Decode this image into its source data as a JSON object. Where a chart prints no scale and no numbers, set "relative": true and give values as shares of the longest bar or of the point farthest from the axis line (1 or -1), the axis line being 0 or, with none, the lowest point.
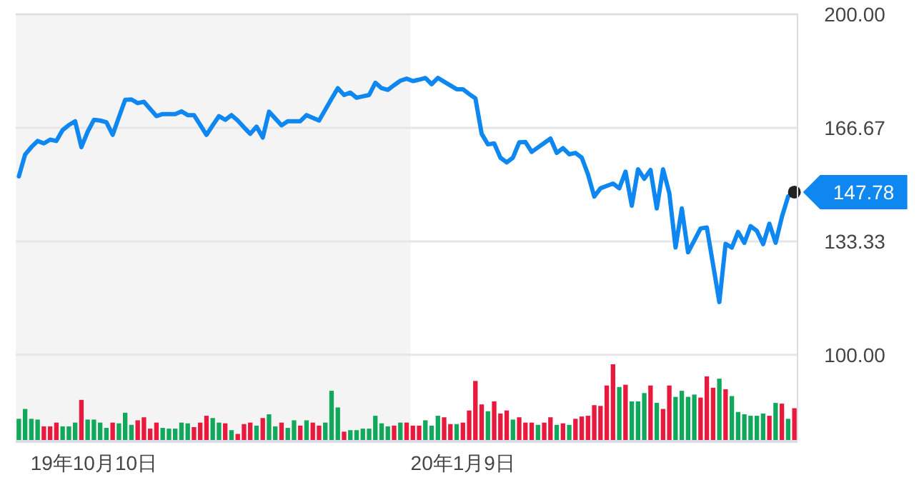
{
  "chart_data": [
    {
      "type": "line",
      "color": "#0f87f0",
      "ylim": [
        75,
        200
      ],
      "grid": "y",
      "yticks": [
        {
          "value": 200,
          "label": "200.00"
        },
        {
          "value": 166.67,
          "label": "166.67"
        },
        {
          "value": 133.33,
          "label": "133.33"
        },
        {
          "value": 100,
          "label": "100.00"
        }
      ],
      "annotations": [
        "147.78"
      ],
      "categories": [
        null,
        null,
        null,
        null,
        null,
        null,
        null,
        null,
        null,
        null,
        null,
        null,
        "19年10月10日",
        null,
        null,
        null,
        null,
        null,
        null,
        null,
        null,
        null,
        null,
        null,
        null,
        null,
        null,
        null,
        null,
        null,
        null,
        null,
        null,
        null,
        null,
        null,
        null,
        null,
        null,
        null,
        null,
        null,
        null,
        null,
        null,
        null,
        null,
        null,
        null,
        null,
        null,
        null,
        null,
        null,
        null,
        null,
        null,
        null,
        null,
        null,
        null,
        null,
        null,
        null,
        null,
        null,
        null,
        null,
        null,
        null,
        null,
        "20年1月9日",
        null,
        null,
        null,
        null,
        null,
        null,
        null,
        null,
        null,
        null,
        null,
        null,
        null,
        null,
        null,
        null,
        null,
        null,
        null,
        null,
        null,
        null,
        null,
        null,
        null,
        null,
        null,
        null,
        null,
        null,
        null,
        null,
        null,
        null,
        null,
        null,
        null,
        null,
        null,
        null,
        null,
        null,
        null,
        null,
        null,
        null,
        null,
        null,
        null,
        null,
        null,
        null,
        null
      ],
      "values": [
        152.4,
        158.8,
        161.0,
        162.8,
        162.1,
        163.2,
        162.8,
        166.0,
        167.5,
        168.6,
        161.0,
        165.5,
        169.0,
        168.8,
        168.3,
        164.6,
        169.8,
        174.9,
        175.0,
        173.9,
        174.3,
        172.2,
        170.1,
        170.7,
        170.7,
        170.7,
        171.5,
        170.4,
        170.4,
        167.5,
        164.6,
        167.4,
        170.1,
        169.0,
        170.4,
        168.8,
        166.8,
        164.9,
        167.0,
        163.8,
        171.4,
        169.4,
        167.4,
        168.6,
        168.6,
        168.6,
        170.4,
        169.6,
        168.8,
        172.0,
        175.2,
        178.3,
        176.3,
        177.0,
        175.5,
        175.9,
        176.3,
        179.9,
        178.3,
        177.8,
        179.2,
        180.5,
        181.1,
        180.4,
        180.8,
        181.3,
        179.5,
        181.3,
        180.2,
        179.1,
        178.0,
        178.0,
        176.6,
        175.3,
        164.9,
        161.8,
        162.1,
        157.9,
        156.5,
        157.9,
        162.4,
        162.5,
        159.6,
        160.9,
        162.2,
        163.5,
        159.3,
        160.7,
        158.9,
        159.3,
        157.9,
        153.0,
        146.5,
        148.9,
        149.6,
        150.3,
        148.9,
        153.8,
        143.8,
        154.5,
        151.7,
        154.3,
        143.0,
        154.5,
        147.5,
        131.5,
        143.0,
        130.1,
        133.6,
        137.1,
        137.4,
        126.5,
        115.5,
        132.6,
        131.5,
        136.1,
        132.9,
        137.8,
        136.4,
        132.5,
        138.5,
        132.9,
        140.5,
        146.5,
        147.78
      ]
    },
    {
      "type": "bar",
      "relative": true,
      "categories": [
        null,
        null,
        null,
        null,
        null,
        null,
        null,
        null,
        null,
        null,
        null,
        null,
        null,
        null,
        null,
        null,
        null,
        null,
        null,
        null,
        null,
        null,
        null,
        null,
        null,
        null,
        null,
        null,
        null,
        null,
        null,
        null,
        null,
        null,
        null,
        null,
        null,
        null,
        null,
        null,
        null,
        null,
        null,
        null,
        null,
        null,
        null,
        null,
        null,
        null,
        null,
        null,
        null,
        null,
        null,
        null,
        null,
        null,
        null,
        null,
        null,
        null,
        null,
        null,
        null,
        null,
        null,
        null,
        null,
        null,
        null,
        null,
        null,
        null,
        null,
        null,
        null,
        null,
        null,
        null,
        null,
        null,
        null,
        null,
        null,
        null,
        null,
        null,
        null,
        null,
        null,
        null,
        null,
        null,
        null,
        null,
        null,
        null,
        null,
        null,
        null,
        null,
        null,
        null,
        null,
        null,
        null,
        null,
        null,
        null,
        null,
        null,
        null,
        null,
        null,
        null,
        null,
        null,
        null,
        null,
        null,
        null,
        null,
        null,
        null
      ],
      "values": [
        0.28,
        0.41,
        0.28,
        0.27,
        0.18,
        0.18,
        0.23,
        0.18,
        0.18,
        0.23,
        0.53,
        0.27,
        0.27,
        0.23,
        0.16,
        0.23,
        0.22,
        0.36,
        0.2,
        0.26,
        0.3,
        0.15,
        0.23,
        0.16,
        0.15,
        0.15,
        0.23,
        0.22,
        0.17,
        0.23,
        0.32,
        0.29,
        0.23,
        0.22,
        0.13,
        0.08,
        0.21,
        0.23,
        0.19,
        0.29,
        0.34,
        0.18,
        0.23,
        0.16,
        0.26,
        0.19,
        0.26,
        0.23,
        0.19,
        0.23,
        0.65,
        0.43,
        0.11,
        0.13,
        0.13,
        0.15,
        0.15,
        0.32,
        0.22,
        0.18,
        0.19,
        0.23,
        0.23,
        0.19,
        0.19,
        0.26,
        0.19,
        0.32,
        0.3,
        0.21,
        0.21,
        0.23,
        0.39,
        0.78,
        0.47,
        0.38,
        0.51,
        0.35,
        0.39,
        0.27,
        0.3,
        0.23,
        0.23,
        0.2,
        0.23,
        0.3,
        0.2,
        0.22,
        0.2,
        0.28,
        0.31,
        0.32,
        0.46,
        0.45,
        0.72,
        1,
        0.7,
        0.73,
        0.51,
        0.51,
        0.62,
        0.72,
        0.49,
        0.41,
        0.72,
        0.57,
        0.65,
        0.57,
        0.6,
        0.56,
        0.84,
        0.69,
        0.81,
        0.67,
        0.58,
        0.37,
        0.34,
        0.32,
        0.32,
        0.35,
        0.32,
        0.49,
        0.48,
        0.28,
        0.42
      ],
      "colors": [
        "#11a85b",
        "#11a85b",
        "#11a85b",
        "#11a85b",
        "#e8193c",
        "#e8193c",
        "#e8193c",
        "#11a85b",
        "#11a85b",
        "#11a85b",
        "#e8193c",
        "#11a85b",
        "#11a85b",
        "#11a85b",
        "#11a85b",
        "#e8193c",
        "#11a85b",
        "#11a85b",
        "#11a85b",
        "#e8193c",
        "#e8193c",
        "#e8193c",
        "#e8193c",
        "#11a85b",
        "#11a85b",
        "#11a85b",
        "#11a85b",
        "#11a85b",
        "#e8193c",
        "#e8193c",
        "#e8193c",
        "#11a85b",
        "#11a85b",
        "#e8193c",
        "#11a85b",
        "#e8193c",
        "#e8193c",
        "#e8193c",
        "#11a85b",
        "#e8193c",
        "#11a85b",
        "#11a85b",
        "#e8193c",
        "#11a85b",
        "#11a85b",
        "#e8193c",
        "#11a85b",
        "#e8193c",
        "#e8193c",
        "#11a85b",
        "#11a85b",
        "#11a85b",
        "#e8193c",
        "#11a85b",
        "#11a85b",
        "#11a85b",
        "#11a85b",
        "#11a85b",
        "#11a85b",
        "#11a85b",
        "#e8193c",
        "#11a85b",
        "#e8193c",
        "#e8193c",
        "#e8193c",
        "#11a85b",
        "#11a85b",
        "#11a85b",
        "#e8193c",
        "#e8193c",
        "#11a85b",
        "#e8193c",
        "#e8193c",
        "#e8193c",
        "#e8193c",
        "#11a85b",
        "#e8193c",
        "#e8193c",
        "#e8193c",
        "#11a85b",
        "#e8193c",
        "#e8193c",
        "#e8193c",
        "#11a85b",
        "#e8193c",
        "#e8193c",
        "#11a85b",
        "#e8193c",
        "#11a85b",
        "#e8193c",
        "#e8193c",
        "#e8193c",
        "#e8193c",
        "#e8193c",
        "#e8193c",
        "#e8193c",
        "#11a85b",
        "#e8193c",
        "#11a85b",
        "#11a85b",
        "#11a85b",
        "#e8193c",
        "#11a85b",
        "#e8193c",
        "#e8193c",
        "#11a85b",
        "#11a85b",
        "#11a85b",
        "#11a85b",
        "#e8193c",
        "#e8193c",
        "#e8193c",
        "#11a85b",
        "#e8193c",
        "#11a85b",
        "#11a85b",
        "#11a85b",
        "#11a85b",
        "#11a85b",
        "#11a85b",
        "#e8193c",
        "#11a85b",
        "#e8193c",
        "#11a85b",
        "#e8193c"
      ]
    }
  ]
}
